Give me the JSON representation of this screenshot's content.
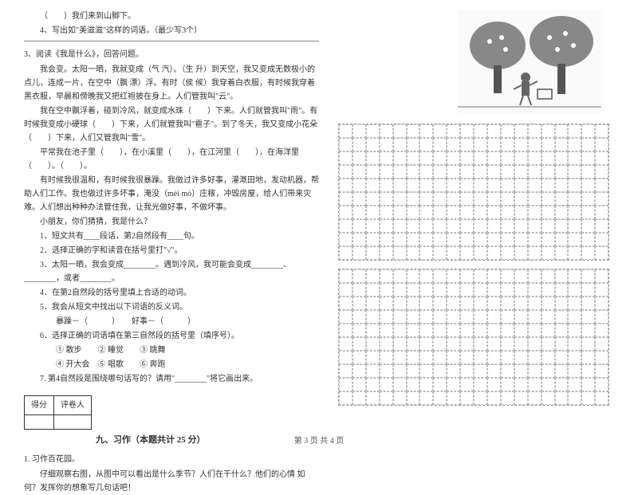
{
  "q_arrive": "（　　）我们来到山脚下。",
  "q4": "4、写出如\"美滋滋\"这样的词语。（最少写3个）",
  "q3_title": "3、阅读《我是什么》，回答问题。",
  "p1": "我会变。太阳一晒，我就变成（气  汽）。（生  升）到天空，我又变成无数极小的点儿，连成一片，在空中（飘  漂）浮。有时（侯  候）我穿着白衣服，有时候我穿着黑衣服，早晨和傍晚我又把红袍披在身上。人们管我叫\"云\"。",
  "p2a": "我在空中飘浮着，碰到冷风，就变成水珠（　　）下来。人们就管我叫\"雨\"。有时候我变成小硬球（　　）下来，人们就管我叫\"雹子\"。到了冬天，我又变成小花朵（　　）下来，人们又管我叫\"雪\"。",
  "p2b": "平常我在池子里（　　），在小溪里（　　），在江河里（　　），在海洋里（　　）。（　　）。",
  "p3": "有时候我很温和，有时候我很暴躁。我做过许多好事，灌溉田地，发动机器，帮助人们工作。我也做过许多坏事，淹没（méi  mò）庄稼，冲毁房屋，给人们带来灾难。人们想出种种办法管住我，让我光做好事，不做坏事。",
  "p4": "小朋友，你们猜猜，我是什么？",
  "sub1": "1．短文共有____段话，第2自然段有____句。",
  "sub2": "2．选择正确的字和读音在括号里打\"√\"。",
  "sub3": "3．太阳一晒，我会变成________。遇到冷风，我可能会变成________、________，或者________。",
  "sub4": "4．在第2自然段的括号里填上合适的动词。",
  "sub5": "5．我会从短文中找出以下词语的反义词。",
  "sub5b": "暴躁－（　　　）　　好事－（　　　）",
  "sub6": "6．选择正确的词语填在第三自然段的括号里（填序号）。",
  "sub6a": "① 散步　　② 睡觉　　③ 跳舞",
  "sub6b": "④ 开大会　⑤ 唱歌　　⑥ 奔跑",
  "sub7": "7. 第4自然段是围绕哪句话写的？请用\"________\"将它画出来。",
  "score_col1": "得分",
  "score_col2": "评卷人",
  "section9": "九、习作（本题共计 25 分）",
  "writing_title": "1. 习作百花园。",
  "writing_body": "仔细观察右图，从图中可以看出是什么季节？人们在干什么？他们的心情  如何？发挥你的想象写几句话吧！",
  "footer": "第 3 页  共 4 页",
  "grid": {
    "cols": 20,
    "rows1": 10,
    "rows2": 10
  }
}
